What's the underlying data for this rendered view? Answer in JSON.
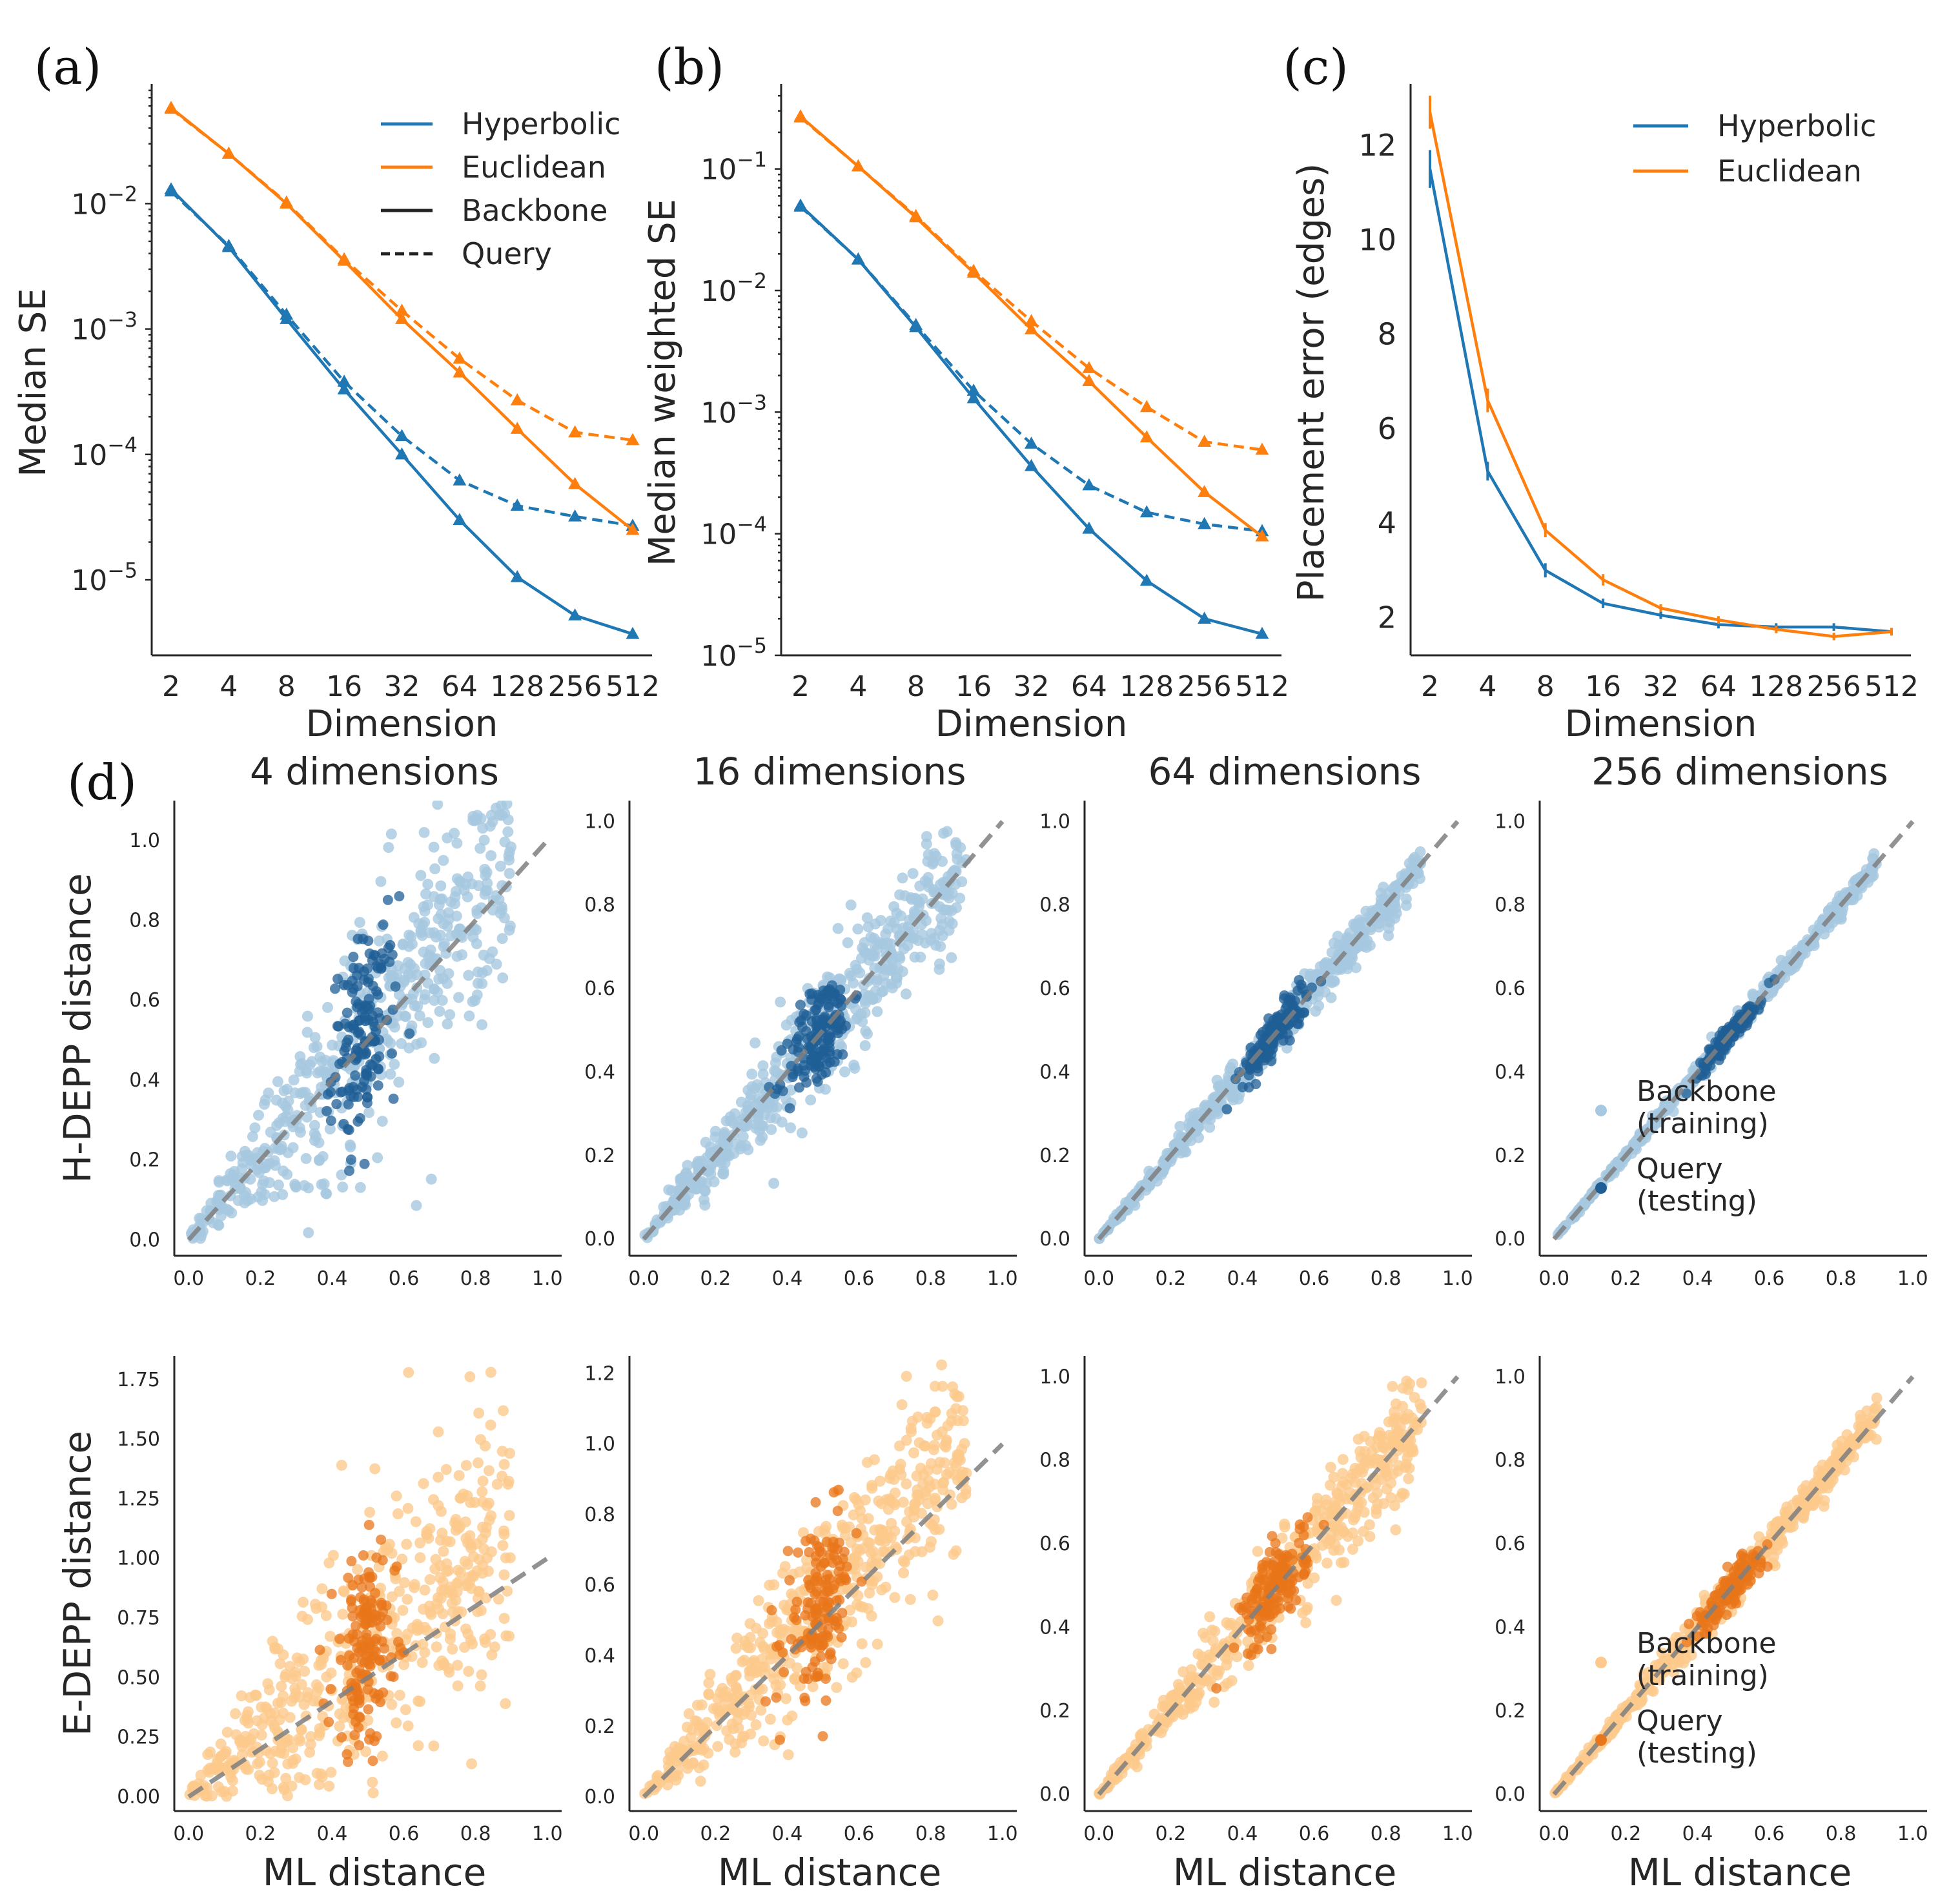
{
  "colors": {
    "hyperbolic": "#1f77b4",
    "euclidean": "#ff7f0e",
    "hyp_light": "#a6c8e0",
    "euc_light": "#fdc98c",
    "hyp_dark": "#1f5f95",
    "euc_dark": "#e8761a",
    "diag": "#7f7f7f"
  },
  "chart_data": [
    {
      "id": "a",
      "panel_label": "(a)",
      "type": "line",
      "yscale": "log",
      "xlabel": "Dimension",
      "ylabel": "Median SE",
      "categories": [
        "2",
        "4",
        "8",
        "16",
        "32",
        "64",
        "128",
        "256",
        "512"
      ],
      "ylim": [
        2.5e-06,
        0.09
      ],
      "yticks": [
        {
          "value": 1e-05,
          "base": "10",
          "exp": "−5"
        },
        {
          "value": 0.0001,
          "base": "10",
          "exp": "−4"
        },
        {
          "value": 0.001,
          "base": "10",
          "exp": "−3"
        },
        {
          "value": 0.01,
          "base": "10",
          "exp": "−2"
        }
      ],
      "series": [
        {
          "name": "Hyperbolic Backbone",
          "geometry": "hyperbolic",
          "style": "solid",
          "values": [
            0.013,
            0.0045,
            0.0012,
            0.00033,
            0.0001,
            3e-05,
            1.05e-05,
            5.2e-06,
            3.7e-06
          ]
        },
        {
          "name": "Hyperbolic Query",
          "geometry": "hyperbolic",
          "style": "dashed",
          "values": [
            0.0125,
            0.0046,
            0.0013,
            0.00038,
            0.00014,
            6.2e-05,
            3.9e-05,
            3.2e-05,
            2.7e-05
          ]
        },
        {
          "name": "Euclidean Backbone",
          "geometry": "euclidean",
          "style": "solid",
          "values": [
            0.058,
            0.025,
            0.01,
            0.0035,
            0.0012,
            0.00045,
            0.00016,
            5.8e-05,
            2.5e-05
          ]
        },
        {
          "name": "Euclidean Query",
          "geometry": "euclidean",
          "style": "dashed",
          "values": [
            0.057,
            0.025,
            0.0102,
            0.0036,
            0.0014,
            0.00058,
            0.00027,
            0.00015,
            0.00013
          ]
        }
      ],
      "legend": [
        "Hyperbolic",
        "Euclidean",
        "Backbone",
        "Query"
      ],
      "legend_placement": "top-right"
    },
    {
      "id": "b",
      "panel_label": "(b)",
      "type": "line",
      "yscale": "log",
      "xlabel": "Dimension",
      "ylabel": "Median weighted SE",
      "categories": [
        "2",
        "4",
        "8",
        "16",
        "32",
        "64",
        "128",
        "256",
        "512"
      ],
      "ylim": [
        1e-05,
        0.5
      ],
      "yticks": [
        {
          "value": 1e-05,
          "base": "10",
          "exp": "−5"
        },
        {
          "value": 0.0001,
          "base": "10",
          "exp": "−4"
        },
        {
          "value": 0.001,
          "base": "10",
          "exp": "−3"
        },
        {
          "value": 0.01,
          "base": "10",
          "exp": "−2"
        },
        {
          "value": 0.1,
          "base": "10",
          "exp": "−1"
        }
      ],
      "series": [
        {
          "name": "Hyperbolic Backbone",
          "geometry": "hyperbolic",
          "style": "solid",
          "values": [
            0.05,
            0.018,
            0.005,
            0.0013,
            0.00036,
            0.00011,
            4.1e-05,
            2e-05,
            1.5e-05
          ]
        },
        {
          "name": "Hyperbolic Query",
          "geometry": "hyperbolic",
          "style": "dashed",
          "values": [
            0.049,
            0.018,
            0.0052,
            0.0015,
            0.00055,
            0.00025,
            0.00015,
            0.00012,
            0.000105
          ]
        },
        {
          "name": "Euclidean Backbone",
          "geometry": "euclidean",
          "style": "solid",
          "values": [
            0.27,
            0.105,
            0.04,
            0.014,
            0.0048,
            0.0018,
            0.00062,
            0.00022,
            9.5e-05
          ]
        },
        {
          "name": "Euclidean Query",
          "geometry": "euclidean",
          "style": "dashed",
          "values": [
            0.265,
            0.105,
            0.041,
            0.0145,
            0.0056,
            0.0023,
            0.0011,
            0.00057,
            0.00049
          ]
        }
      ]
    },
    {
      "id": "c",
      "panel_label": "(c)",
      "type": "line",
      "yscale": "linear",
      "xlabel": "Dimension",
      "ylabel": "Placement error (edges)",
      "categories": [
        "2",
        "4",
        "8",
        "16",
        "32",
        "64",
        "128",
        "256",
        "512"
      ],
      "ylim": [
        1.2,
        13.3
      ],
      "yticks": [
        2,
        4,
        6,
        8,
        10,
        12
      ],
      "series": [
        {
          "name": "Hyperbolic",
          "geometry": "hyperbolic",
          "style": "solid",
          "values": [
            11.5,
            5.1,
            3.0,
            2.3,
            2.05,
            1.85,
            1.8,
            1.8,
            1.7
          ],
          "errors": [
            0.4,
            0.2,
            0.15,
            0.1,
            0.08,
            0.08,
            0.08,
            0.08,
            0.08
          ]
        },
        {
          "name": "Euclidean",
          "geometry": "euclidean",
          "style": "solid",
          "values": [
            12.7,
            6.6,
            3.85,
            2.8,
            2.2,
            1.95,
            1.75,
            1.6,
            1.7
          ],
          "errors": [
            0.35,
            0.25,
            0.15,
            0.12,
            0.08,
            0.08,
            0.08,
            0.08,
            0.08
          ]
        }
      ],
      "legend": [
        "Hyperbolic",
        "Euclidean"
      ],
      "legend_placement": "top-right"
    }
  ],
  "scatter": {
    "panel_label": "(d)",
    "type": "scatter",
    "columns": [
      "4 dimensions",
      "16 dimensions",
      "64 dimensions",
      "256 dimensions"
    ],
    "xlabel": "ML distance",
    "xticks": [
      "0.0",
      "0.2",
      "0.4",
      "0.6",
      "0.8",
      "1.0"
    ],
    "rows": [
      {
        "geometry": "hyperbolic",
        "ylabel": "H-DEPP distance",
        "panels": [
          {
            "ylim": [
              -0.04,
              1.1
            ],
            "yticks": [
              "0.0",
              "0.2",
              "0.4",
              "0.6",
              "0.8",
              "1.0"
            ],
            "ytick_values": [
              0,
              0.2,
              0.4,
              0.6,
              0.8,
              1.0
            ],
            "slope": 1.06,
            "spread": 0.14,
            "query_spread": 0.12
          },
          {
            "ylim": [
              -0.04,
              1.05
            ],
            "yticks": [
              "0.0",
              "0.2",
              "0.4",
              "0.6",
              "0.8",
              "1.0"
            ],
            "ytick_values": [
              0,
              0.2,
              0.4,
              0.6,
              0.8,
              1.0
            ],
            "slope": 1.0,
            "spread": 0.07,
            "query_spread": 0.06
          },
          {
            "ylim": [
              -0.04,
              1.05
            ],
            "yticks": [
              "0.0",
              "0.2",
              "0.4",
              "0.6",
              "0.8",
              "1.0"
            ],
            "ytick_values": [
              0,
              0.2,
              0.4,
              0.6,
              0.8,
              1.0
            ],
            "slope": 1.0,
            "spread": 0.025,
            "query_spread": 0.025
          },
          {
            "ylim": [
              -0.04,
              1.05
            ],
            "yticks": [
              "0.0",
              "0.2",
              "0.4",
              "0.6",
              "0.8",
              "1.0"
            ],
            "ytick_values": [
              0,
              0.2,
              0.4,
              0.6,
              0.8,
              1.0
            ],
            "slope": 1.0,
            "spread": 0.012,
            "query_spread": 0.012
          }
        ]
      },
      {
        "geometry": "euclidean",
        "ylabel": "E-DEPP distance",
        "panels": [
          {
            "ylim": [
              -0.06,
              1.85
            ],
            "yticks": [
              "0.00",
              "0.25",
              "0.50",
              "0.75",
              "1.00",
              "1.25",
              "1.50",
              "1.75"
            ],
            "ytick_values": [
              0,
              0.25,
              0.5,
              0.75,
              1.0,
              1.25,
              1.5,
              1.75
            ],
            "slope": 1.25,
            "spread": 0.28,
            "query_spread": 0.2
          },
          {
            "ylim": [
              -0.04,
              1.25
            ],
            "yticks": [
              "0.0",
              "0.2",
              "0.4",
              "0.6",
              "0.8",
              "1.0",
              "1.2"
            ],
            "ytick_values": [
              0,
              0.2,
              0.4,
              0.6,
              0.8,
              1.0,
              1.2
            ],
            "slope": 1.1,
            "spread": 0.13,
            "query_spread": 0.11
          },
          {
            "ylim": [
              -0.04,
              1.05
            ],
            "yticks": [
              "0.0",
              "0.2",
              "0.4",
              "0.6",
              "0.8",
              "1.0"
            ],
            "ytick_values": [
              0,
              0.2,
              0.4,
              0.6,
              0.8,
              1.0
            ],
            "slope": 1.0,
            "spread": 0.06,
            "query_spread": 0.05
          },
          {
            "ylim": [
              -0.04,
              1.05
            ],
            "yticks": [
              "0.0",
              "0.2",
              "0.4",
              "0.6",
              "0.8",
              "1.0"
            ],
            "ytick_values": [
              0,
              0.2,
              0.4,
              0.6,
              0.8,
              1.0
            ],
            "slope": 1.0,
            "spread": 0.022,
            "query_spread": 0.02
          }
        ]
      }
    ],
    "legend": {
      "backbone_line1": "Backbone",
      "backbone_line2": "(training)",
      "query_line1": "Query",
      "query_line2": "(testing)"
    },
    "diagonal": "y = x"
  }
}
